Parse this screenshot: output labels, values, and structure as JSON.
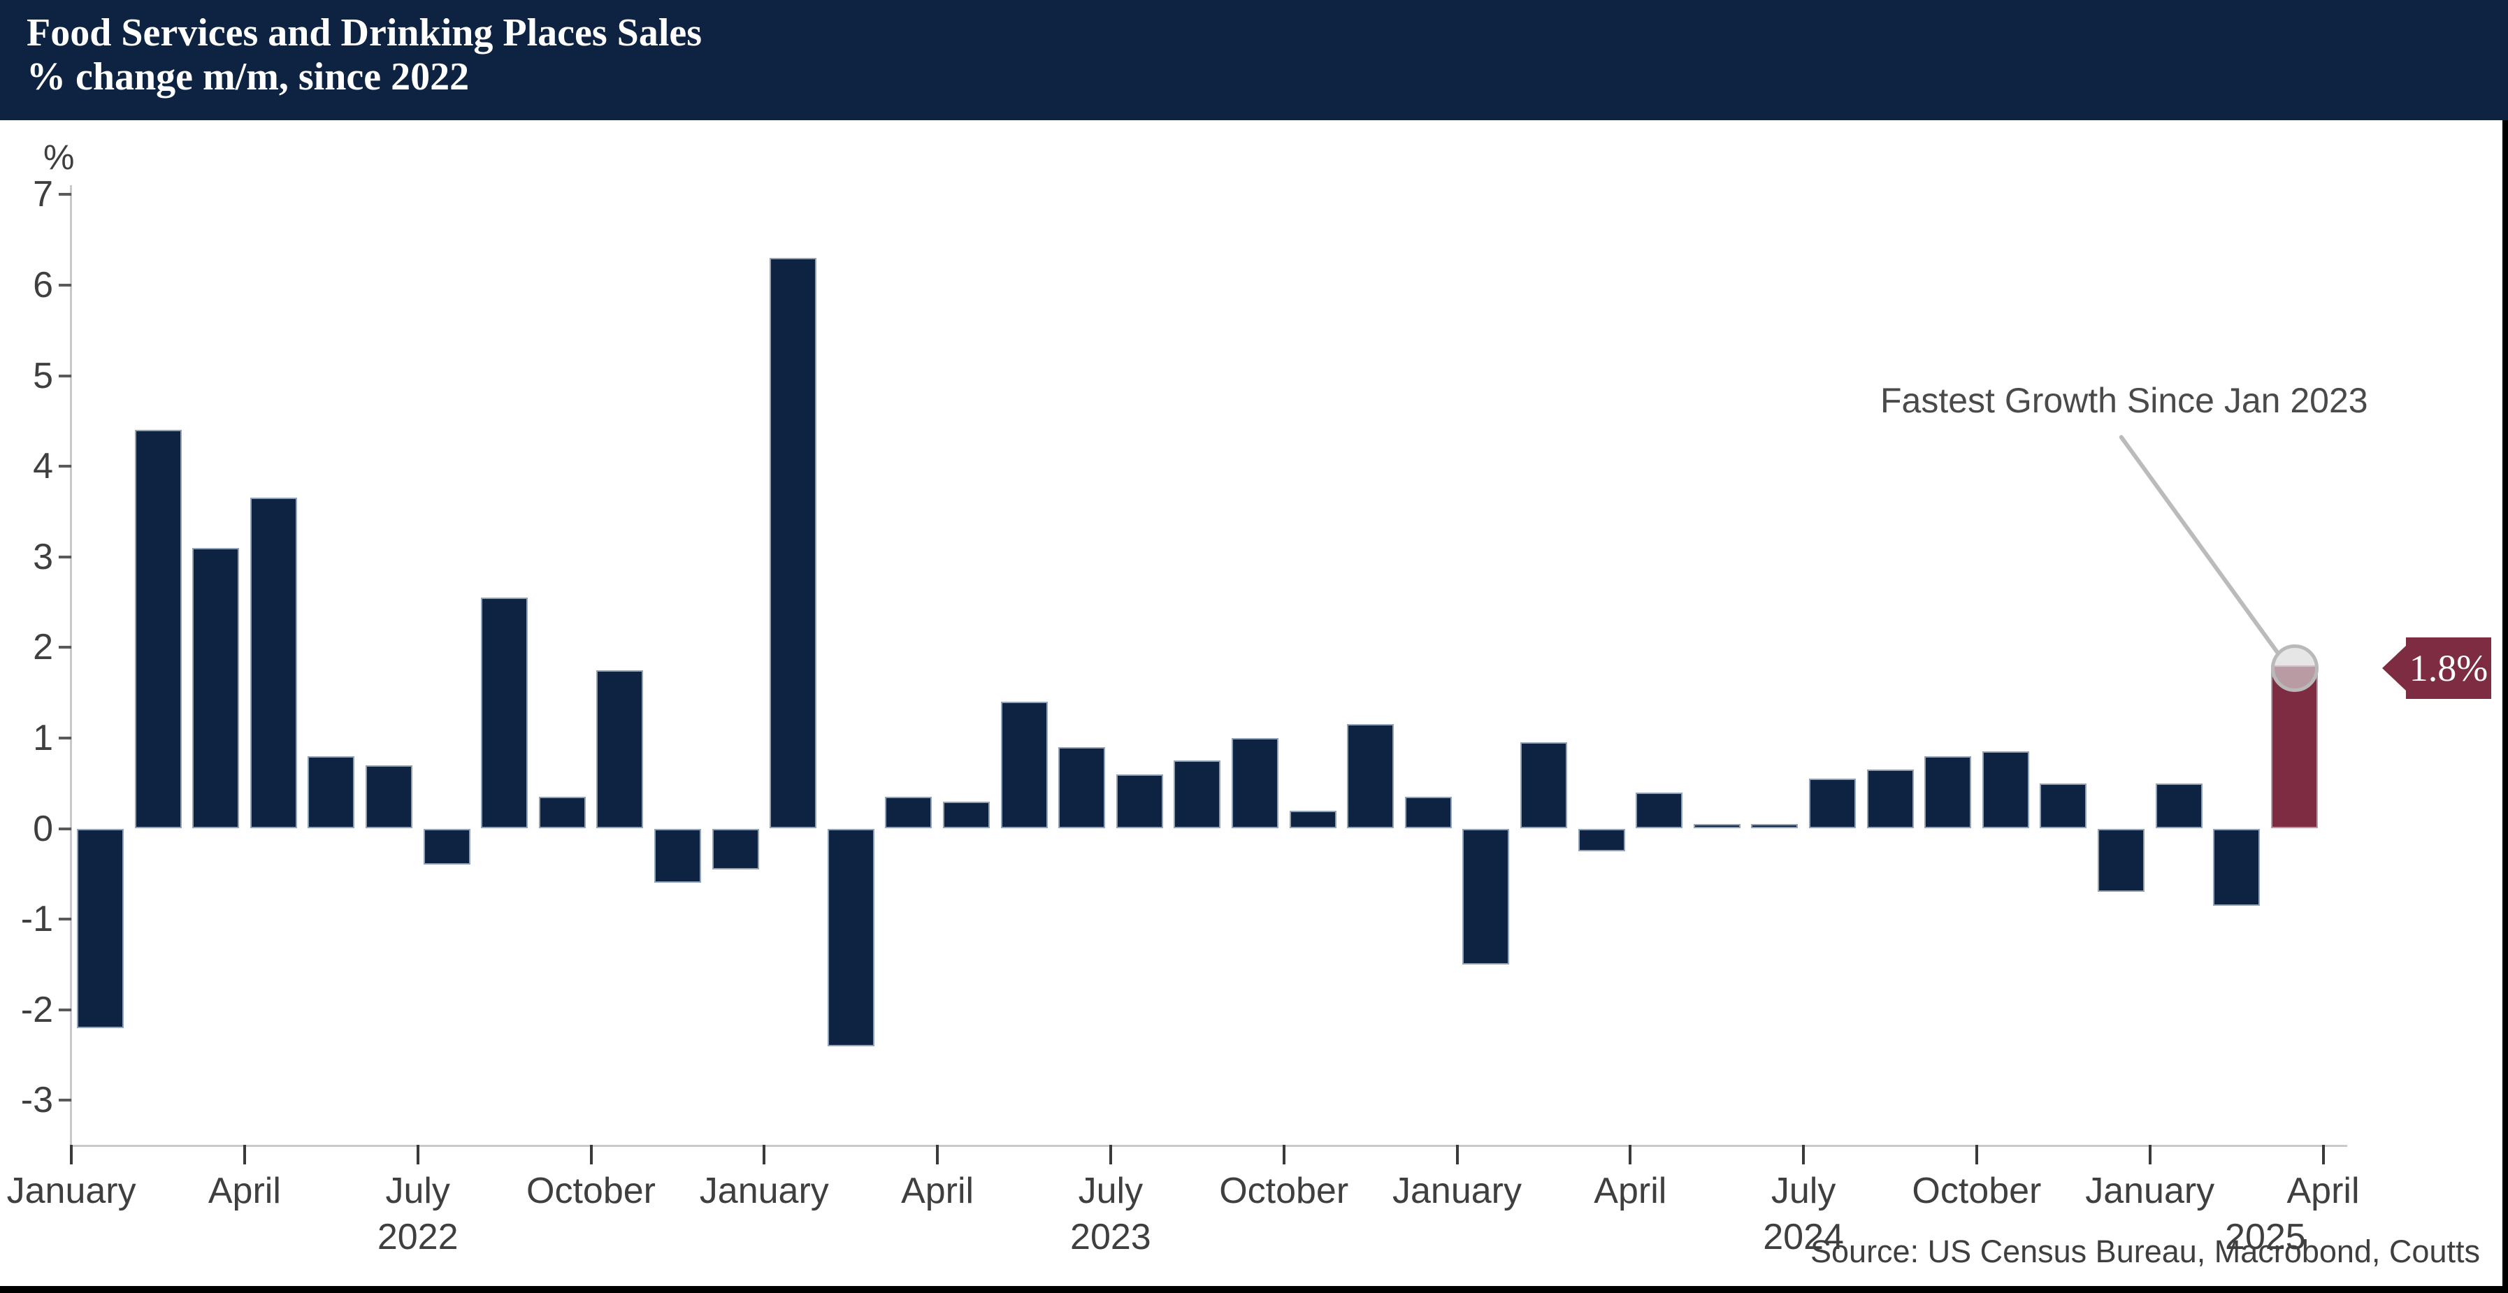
{
  "header": {
    "title_line1": "Food Services and Drinking Places Sales",
    "title_line2": "% change m/m, since 2022"
  },
  "chart_data": {
    "type": "bar",
    "title": "Food Services and Drinking Places Sales",
    "subtitle": "% change m/m, since 2022",
    "ylabel": "%",
    "ylim": [
      -3,
      7
    ],
    "yticks": [
      7,
      6,
      5,
      4,
      3,
      2,
      1,
      0,
      -1,
      -2,
      -3
    ],
    "grid": false,
    "categories": [
      "Jan 2022",
      "Feb 2022",
      "Mar 2022",
      "Apr 2022",
      "May 2022",
      "Jun 2022",
      "Jul 2022",
      "Aug 2022",
      "Sep 2022",
      "Oct 2022",
      "Nov 2022",
      "Dec 2022",
      "Jan 2023",
      "Feb 2023",
      "Mar 2023",
      "Apr 2023",
      "May 2023",
      "Jun 2023",
      "Jul 2023",
      "Aug 2023",
      "Sep 2023",
      "Oct 2023",
      "Nov 2023",
      "Dec 2023",
      "Jan 2024",
      "Feb 2024",
      "Mar 2024",
      "Apr 2024",
      "May 2024",
      "Jun 2024",
      "Jul 2024",
      "Aug 2024",
      "Sep 2024",
      "Oct 2024",
      "Nov 2024",
      "Dec 2024",
      "Jan 2025",
      "Feb 2025",
      "Mar 2025"
    ],
    "values": [
      -2.2,
      4.4,
      3.1,
      3.65,
      0.8,
      0.7,
      -0.4,
      2.55,
      0.35,
      1.75,
      -0.6,
      -0.45,
      6.3,
      -2.4,
      0.35,
      0.3,
      1.4,
      0.9,
      0.6,
      0.75,
      1.0,
      0.2,
      1.15,
      0.35,
      -1.5,
      0.95,
      -0.25,
      0.4,
      0.05,
      0.05,
      0.55,
      0.65,
      0.8,
      0.85,
      0.5,
      -0.7,
      0.5,
      -0.85,
      1.8
    ],
    "xticks": [
      {
        "m": 0,
        "label": "January"
      },
      {
        "m": 3,
        "label": "April"
      },
      {
        "m": 6,
        "label": "July"
      },
      {
        "m": 9,
        "label": "October"
      },
      {
        "m": 12,
        "label": "January"
      },
      {
        "m": 15,
        "label": "April"
      },
      {
        "m": 18,
        "label": "July"
      },
      {
        "m": 21,
        "label": "October"
      },
      {
        "m": 24,
        "label": "January"
      },
      {
        "m": 27,
        "label": "April"
      },
      {
        "m": 30,
        "label": "July"
      },
      {
        "m": 33,
        "label": "October"
      },
      {
        "m": 36,
        "label": "January"
      },
      {
        "m": 39,
        "label": "April"
      }
    ],
    "year_labels": [
      {
        "m": 6,
        "label": "2022"
      },
      {
        "m": 18,
        "label": "2023"
      },
      {
        "m": 30,
        "label": "2024"
      },
      {
        "m": 38,
        "label": "2025"
      }
    ],
    "highlight": {
      "index": 38,
      "value_label": "1.8%",
      "annotation": "Fastest Growth Since Jan 2023"
    },
    "colors": {
      "bar": "#0e2342",
      "highlight_bar": "#7e2c41",
      "header_bg": "#0e2342",
      "axis_line": "#c9c9c9",
      "axis_text": "#3f3f3f",
      "annotation_text": "#4a4a4a",
      "connector": "#bbbbbb"
    },
    "legend": null
  },
  "footer": {
    "source": "Source: US Census Bureau, Macrobond, Coutts"
  }
}
